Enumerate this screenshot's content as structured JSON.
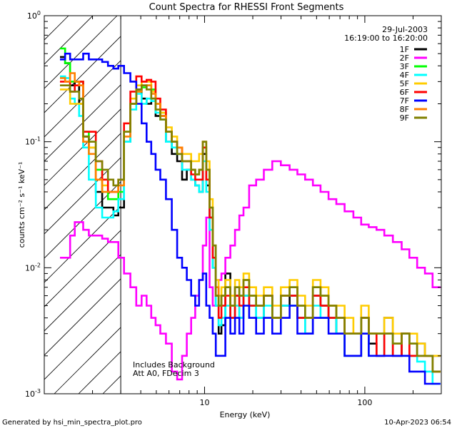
{
  "chart_data": {
    "type": "line",
    "title": "Count Spectra for RHESSI Front Segments",
    "xlabel": "Energy (keV)",
    "ylabel": "counts cm⁻² s⁻¹ keV⁻¹",
    "xscale": "log",
    "yscale": "log",
    "xlim": [
      1.0,
      300.0
    ],
    "ylim": [
      0.001,
      1.0
    ],
    "x_ticks": [
      {
        "value": 10,
        "label": "10"
      },
      {
        "value": 100,
        "label": "100"
      }
    ],
    "y_ticks": [
      {
        "value": 1.0,
        "base": "10",
        "exp": "0"
      },
      {
        "value": 0.1,
        "base": "10",
        "exp": "-1"
      },
      {
        "value": 0.01,
        "base": "10",
        "exp": "-2"
      },
      {
        "value": 0.001,
        "base": "10",
        "exp": "-3"
      }
    ],
    "attenuator_cutoff_kev": 3.0,
    "legend_position": "top-right",
    "date": "29-Jul-2003",
    "time_range": "16:19:00 to 16:20:00",
    "annotations": [
      "Includes Background",
      "Att A0, FDecim 3"
    ],
    "x": [
      1.3,
      1.4,
      1.5,
      1.6,
      1.7,
      1.8,
      2.0,
      2.2,
      2.4,
      2.6,
      2.8,
      3.0,
      3.3,
      3.6,
      3.9,
      4.2,
      4.5,
      4.8,
      5.1,
      5.5,
      6.0,
      6.5,
      7.0,
      7.5,
      8.0,
      8.5,
      9.0,
      9.5,
      10.0,
      10.5,
      11.0,
      11.5,
      12.0,
      12.5,
      13.0,
      14.0,
      15.0,
      16.0,
      17.0,
      18.0,
      20.0,
      22.0,
      25.0,
      28.0,
      32.0,
      36.0,
      40.0,
      45.0,
      50.0,
      56.0,
      63.0,
      70.0,
      80.0,
      90.0,
      100.0,
      112.0,
      125.0,
      140.0,
      160.0,
      180.0,
      200.0,
      225.0,
      250.0,
      280.0
    ],
    "series": [
      {
        "name": "1F",
        "color": "#000000",
        "values": [
          0.47,
          0.42,
          0.28,
          0.3,
          0.2,
          0.11,
          0.09,
          0.04,
          0.03,
          0.03,
          0.026,
          0.03,
          0.1,
          0.2,
          0.26,
          0.22,
          0.2,
          0.22,
          0.16,
          0.16,
          0.1,
          0.08,
          0.07,
          0.05,
          0.06,
          0.05,
          0.045,
          0.04,
          0.08,
          0.045,
          0.025,
          0.01,
          0.005,
          0.003,
          0.0035,
          0.009,
          0.004,
          0.006,
          0.004,
          0.006,
          0.005,
          0.004,
          0.006,
          0.004,
          0.005,
          0.006,
          0.004,
          0.003,
          0.006,
          0.005,
          0.004,
          0.003,
          0.002,
          0.002,
          0.004,
          0.0025,
          0.002,
          0.004,
          0.002,
          0.003,
          0.002,
          0.0025,
          0.002,
          0.002
        ]
      },
      {
        "name": "2F",
        "color": "#ff00ff",
        "values": [
          0.012,
          0.012,
          0.018,
          0.023,
          0.023,
          0.02,
          0.018,
          0.018,
          0.017,
          0.016,
          0.016,
          0.012,
          0.009,
          0.007,
          0.005,
          0.006,
          0.005,
          0.004,
          0.0035,
          0.003,
          0.0025,
          0.0015,
          0.0013,
          0.002,
          0.003,
          0.004,
          0.006,
          0.008,
          0.015,
          0.025,
          0.007,
          0.005,
          0.006,
          0.008,
          0.009,
          0.012,
          0.015,
          0.02,
          0.026,
          0.03,
          0.045,
          0.05,
          0.06,
          0.07,
          0.065,
          0.06,
          0.055,
          0.05,
          0.045,
          0.04,
          0.035,
          0.032,
          0.028,
          0.025,
          0.022,
          0.021,
          0.02,
          0.018,
          0.016,
          0.014,
          0.012,
          0.01,
          0.009,
          0.007
        ]
      },
      {
        "name": "3F",
        "color": "#00ff00",
        "values": [
          0.55,
          0.42,
          0.3,
          0.3,
          0.3,
          0.12,
          0.1,
          0.06,
          0.04,
          0.035,
          0.035,
          0.04,
          0.12,
          0.2,
          0.25,
          0.27,
          0.28,
          0.26,
          0.2,
          0.17,
          0.12,
          0.1,
          0.08,
          0.07,
          0.07,
          0.06,
          0.055,
          0.06,
          0.09,
          0.06,
          0.03,
          0.015,
          0.007,
          0.005,
          0.006,
          0.007,
          0.005,
          0.007,
          0.006,
          0.008,
          0.006,
          0.005,
          0.006,
          0.004,
          0.006,
          0.007,
          0.005,
          0.004,
          0.007,
          0.006,
          0.005,
          0.004,
          0.003,
          0.003,
          0.004,
          0.003,
          0.003,
          0.003,
          0.0025,
          0.003,
          0.0025,
          0.002,
          0.002,
          0.0015
        ]
      },
      {
        "name": "4F",
        "color": "#00ffff",
        "values": [
          0.33,
          0.32,
          0.22,
          0.2,
          0.16,
          0.09,
          0.05,
          0.03,
          0.025,
          0.025,
          0.028,
          0.035,
          0.1,
          0.18,
          0.24,
          0.2,
          0.22,
          0.21,
          0.17,
          0.15,
          0.1,
          0.09,
          0.08,
          0.06,
          0.06,
          0.05,
          0.045,
          0.04,
          0.07,
          0.04,
          0.02,
          0.01,
          0.005,
          0.0035,
          0.004,
          0.005,
          0.004,
          0.005,
          0.004,
          0.006,
          0.005,
          0.004,
          0.005,
          0.004,
          0.005,
          0.005,
          0.004,
          0.003,
          0.005,
          0.004,
          0.004,
          0.003,
          0.002,
          0.002,
          0.003,
          0.002,
          0.002,
          0.003,
          0.002,
          0.002,
          0.002,
          0.0018,
          0.0015,
          0.0012
        ]
      },
      {
        "name": "5F",
        "color": "#ffcc00",
        "values": [
          0.26,
          0.26,
          0.2,
          0.2,
          0.2,
          0.1,
          0.09,
          0.05,
          0.045,
          0.04,
          0.04,
          0.05,
          0.12,
          0.22,
          0.28,
          0.3,
          0.3,
          0.25,
          0.2,
          0.17,
          0.13,
          0.11,
          0.09,
          0.08,
          0.08,
          0.07,
          0.07,
          0.08,
          0.1,
          0.07,
          0.035,
          0.015,
          0.008,
          0.006,
          0.007,
          0.008,
          0.006,
          0.008,
          0.007,
          0.009,
          0.007,
          0.006,
          0.007,
          0.005,
          0.007,
          0.008,
          0.006,
          0.005,
          0.008,
          0.007,
          0.005,
          0.005,
          0.004,
          0.003,
          0.005,
          0.003,
          0.003,
          0.004,
          0.003,
          0.003,
          0.003,
          0.0025,
          0.002,
          0.002
        ]
      },
      {
        "name": "6F",
        "color": "#ff0000",
        "values": [
          0.3,
          0.3,
          0.25,
          0.28,
          0.3,
          0.12,
          0.12,
          0.07,
          0.05,
          0.04,
          0.04,
          0.05,
          0.14,
          0.25,
          0.33,
          0.3,
          0.31,
          0.3,
          0.22,
          0.18,
          0.12,
          0.1,
          0.09,
          0.07,
          0.07,
          0.055,
          0.05,
          0.05,
          0.09,
          0.05,
          0.025,
          0.012,
          0.006,
          0.004,
          0.005,
          0.006,
          0.004,
          0.006,
          0.005,
          0.007,
          0.005,
          0.005,
          0.006,
          0.004,
          0.006,
          0.006,
          0.004,
          0.004,
          0.006,
          0.005,
          0.004,
          0.004,
          0.003,
          0.003,
          0.004,
          0.003,
          0.002,
          0.003,
          0.002,
          0.003,
          0.002,
          0.002,
          0.002,
          0.0015
        ]
      },
      {
        "name": "7F",
        "color": "#0000ff",
        "values": [
          0.45,
          0.5,
          0.45,
          0.45,
          0.45,
          0.5,
          0.45,
          0.45,
          0.43,
          0.4,
          0.38,
          0.4,
          0.35,
          0.3,
          0.2,
          0.14,
          0.1,
          0.08,
          0.06,
          0.05,
          0.035,
          0.02,
          0.012,
          0.01,
          0.008,
          0.006,
          0.005,
          0.008,
          0.009,
          0.005,
          0.004,
          0.003,
          0.002,
          0.002,
          0.002,
          0.004,
          0.003,
          0.004,
          0.003,
          0.005,
          0.004,
          0.003,
          0.004,
          0.003,
          0.004,
          0.005,
          0.003,
          0.003,
          0.004,
          0.004,
          0.003,
          0.003,
          0.002,
          0.002,
          0.003,
          0.002,
          0.002,
          0.002,
          0.002,
          0.002,
          0.0015,
          0.0015,
          0.0012,
          0.0012
        ]
      },
      {
        "name": "8F",
        "color": "#ff8000",
        "values": [
          0.32,
          0.3,
          0.35,
          0.3,
          0.28,
          0.1,
          0.08,
          0.05,
          0.04,
          0.04,
          0.04,
          0.045,
          0.11,
          0.2,
          0.25,
          0.28,
          0.28,
          0.24,
          0.2,
          0.16,
          0.12,
          0.1,
          0.09,
          0.07,
          0.07,
          0.06,
          0.055,
          0.06,
          0.1,
          0.06,
          0.03,
          0.015,
          0.007,
          0.005,
          0.006,
          0.007,
          0.005,
          0.007,
          0.006,
          0.008,
          0.006,
          0.005,
          0.006,
          0.004,
          0.006,
          0.007,
          0.005,
          0.004,
          0.007,
          0.006,
          0.005,
          0.004,
          0.003,
          0.003,
          0.004,
          0.003,
          0.003,
          0.003,
          0.0025,
          0.003,
          0.0025,
          0.002,
          0.002,
          0.0015
        ]
      },
      {
        "name": "9F",
        "color": "#808000",
        "values": [
          0.28,
          0.28,
          0.25,
          0.25,
          0.22,
          0.11,
          0.1,
          0.07,
          0.06,
          0.05,
          0.045,
          0.05,
          0.12,
          0.2,
          0.26,
          0.28,
          0.26,
          0.22,
          0.18,
          0.15,
          0.12,
          0.1,
          0.08,
          0.07,
          0.07,
          0.06,
          0.055,
          0.06,
          0.1,
          0.06,
          0.03,
          0.015,
          0.006,
          0.005,
          0.006,
          0.007,
          0.005,
          0.007,
          0.006,
          0.008,
          0.006,
          0.005,
          0.006,
          0.004,
          0.006,
          0.007,
          0.005,
          0.004,
          0.007,
          0.006,
          0.005,
          0.004,
          0.003,
          0.003,
          0.004,
          0.003,
          0.003,
          0.003,
          0.0025,
          0.003,
          0.0025,
          0.002,
          0.002,
          0.0015
        ]
      }
    ]
  },
  "footer": {
    "generated_by": "Generated by hsi_min_spectra_plot.pro",
    "timestamp": "10-Apr-2023 06:54"
  }
}
